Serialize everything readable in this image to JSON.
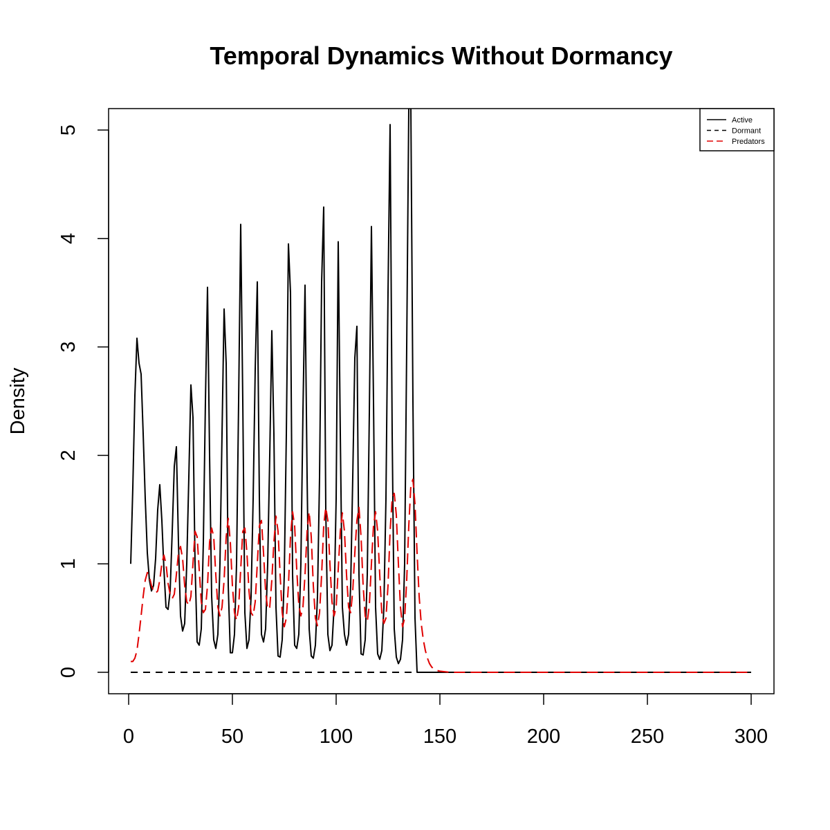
{
  "chart_data": {
    "type": "line",
    "title": "Temporal Dynamics Without Dormancy",
    "xlabel": "",
    "ylabel": "Density",
    "xlim": [
      1,
      300
    ],
    "ylim": [
      0,
      5
    ],
    "x_ticks": [
      0,
      50,
      100,
      150,
      200,
      250,
      300
    ],
    "y_ticks": [
      0,
      1,
      2,
      3,
      4,
      5
    ],
    "grid": false,
    "legend_position": "top-right",
    "series": [
      {
        "name": "Active",
        "color": "#000000",
        "style": "solid",
        "points": [
          [
            1,
            1.0
          ],
          [
            2,
            1.7
          ],
          [
            3,
            2.55
          ],
          [
            4,
            3.08
          ],
          [
            5,
            2.85
          ],
          [
            6,
            2.75
          ],
          [
            7,
            2.2
          ],
          [
            8,
            1.6
          ],
          [
            9,
            1.1
          ],
          [
            10,
            0.85
          ],
          [
            11,
            0.75
          ],
          [
            12,
            0.8
          ],
          [
            13,
            1.05
          ],
          [
            14,
            1.5
          ],
          [
            15,
            1.73
          ],
          [
            16,
            1.4
          ],
          [
            17,
            0.95
          ],
          [
            18,
            0.6
          ],
          [
            19,
            0.58
          ],
          [
            20,
            0.75
          ],
          [
            21,
            1.3
          ],
          [
            22,
            1.9
          ],
          [
            23,
            2.08
          ],
          [
            24,
            1.2
          ],
          [
            25,
            0.52
          ],
          [
            26,
            0.38
          ],
          [
            27,
            0.45
          ],
          [
            28,
            1.0
          ],
          [
            29,
            1.8
          ],
          [
            30,
            2.65
          ],
          [
            31,
            2.35
          ],
          [
            32,
            1.0
          ],
          [
            33,
            0.28
          ],
          [
            34,
            0.25
          ],
          [
            35,
            0.4
          ],
          [
            36,
            1.2
          ],
          [
            37,
            2.5
          ],
          [
            38,
            3.55
          ],
          [
            39,
            2.0
          ],
          [
            40,
            0.7
          ],
          [
            41,
            0.3
          ],
          [
            42,
            0.22
          ],
          [
            43,
            0.35
          ],
          [
            44,
            1.0
          ],
          [
            45,
            2.2
          ],
          [
            46,
            3.35
          ],
          [
            47,
            2.85
          ],
          [
            48,
            0.8
          ],
          [
            49,
            0.18
          ],
          [
            50,
            0.18
          ],
          [
            51,
            0.35
          ],
          [
            52,
            1.0
          ],
          [
            53,
            2.5
          ],
          [
            54,
            4.13
          ],
          [
            55,
            2.5
          ],
          [
            56,
            0.55
          ],
          [
            57,
            0.22
          ],
          [
            58,
            0.3
          ],
          [
            59,
            0.7
          ],
          [
            60,
            1.6
          ],
          [
            61,
            2.8
          ],
          [
            62,
            3.6
          ],
          [
            63,
            1.6
          ],
          [
            64,
            0.35
          ],
          [
            65,
            0.28
          ],
          [
            66,
            0.4
          ],
          [
            67,
            1.0
          ],
          [
            68,
            2.0
          ],
          [
            69,
            3.15
          ],
          [
            70,
            2.2
          ],
          [
            71,
            0.6
          ],
          [
            72,
            0.15
          ],
          [
            73,
            0.14
          ],
          [
            74,
            0.3
          ],
          [
            75,
            0.9
          ],
          [
            76,
            2.2
          ],
          [
            77,
            3.95
          ],
          [
            78,
            3.5
          ],
          [
            79,
            0.9
          ],
          [
            80,
            0.25
          ],
          [
            81,
            0.22
          ],
          [
            82,
            0.35
          ],
          [
            83,
            1.0
          ],
          [
            84,
            2.4
          ],
          [
            85,
            3.57
          ],
          [
            86,
            1.8
          ],
          [
            87,
            0.4
          ],
          [
            88,
            0.15
          ],
          [
            89,
            0.13
          ],
          [
            90,
            0.25
          ],
          [
            91,
            0.7
          ],
          [
            92,
            1.8
          ],
          [
            93,
            3.6
          ],
          [
            94,
            4.29
          ],
          [
            95,
            1.5
          ],
          [
            96,
            0.35
          ],
          [
            97,
            0.2
          ],
          [
            98,
            0.25
          ],
          [
            99,
            0.6
          ],
          [
            100,
            1.6
          ],
          [
            101,
            3.97
          ],
          [
            102,
            2.2
          ],
          [
            103,
            0.6
          ],
          [
            104,
            0.35
          ],
          [
            105,
            0.25
          ],
          [
            106,
            0.35
          ],
          [
            107,
            0.8
          ],
          [
            108,
            1.8
          ],
          [
            109,
            2.9
          ],
          [
            110,
            3.19
          ],
          [
            111,
            0.9
          ],
          [
            112,
            0.17
          ],
          [
            113,
            0.16
          ],
          [
            114,
            0.3
          ],
          [
            115,
            0.9
          ],
          [
            116,
            2.4
          ],
          [
            117,
            4.11
          ],
          [
            118,
            2.5
          ],
          [
            119,
            0.6
          ],
          [
            120,
            0.17
          ],
          [
            121,
            0.12
          ],
          [
            122,
            0.2
          ],
          [
            123,
            0.6
          ],
          [
            124,
            1.6
          ],
          [
            125,
            3.5
          ],
          [
            126,
            5.05
          ],
          [
            127,
            2.2
          ],
          [
            128,
            0.4
          ],
          [
            129,
            0.14
          ],
          [
            130,
            0.08
          ],
          [
            131,
            0.12
          ],
          [
            132,
            0.3
          ],
          [
            133,
            1.0
          ],
          [
            134,
            3.0
          ],
          [
            135,
            5.2
          ],
          [
            136,
            5.2
          ],
          [
            137,
            2.5
          ],
          [
            138,
            0.5
          ],
          [
            139,
            0.0
          ],
          [
            140,
            0.0
          ],
          [
            160,
            0.0
          ],
          [
            200,
            0.0
          ],
          [
            250,
            0.0
          ],
          [
            300,
            0.0
          ]
        ]
      },
      {
        "name": "Dormant",
        "color": "#000000",
        "style": "dashed",
        "points": [
          [
            1,
            0.0
          ],
          [
            300,
            0.0
          ]
        ]
      },
      {
        "name": "Predators",
        "color": "#e00000",
        "style": "dashed",
        "points": [
          [
            1,
            0.1
          ],
          [
            2,
            0.1
          ],
          [
            3,
            0.13
          ],
          [
            4,
            0.2
          ],
          [
            5,
            0.35
          ],
          [
            6,
            0.52
          ],
          [
            7,
            0.7
          ],
          [
            8,
            0.85
          ],
          [
            9,
            0.92
          ],
          [
            10,
            0.88
          ],
          [
            11,
            0.8
          ],
          [
            12,
            0.75
          ],
          [
            13,
            0.73
          ],
          [
            14,
            0.75
          ],
          [
            15,
            0.85
          ],
          [
            16,
            1.0
          ],
          [
            17,
            1.08
          ],
          [
            18,
            1.0
          ],
          [
            19,
            0.82
          ],
          [
            20,
            0.72
          ],
          [
            21,
            0.68
          ],
          [
            22,
            0.72
          ],
          [
            23,
            0.9
          ],
          [
            24,
            1.1
          ],
          [
            25,
            1.16
          ],
          [
            26,
            1.05
          ],
          [
            27,
            0.8
          ],
          [
            28,
            0.65
          ],
          [
            29,
            0.62
          ],
          [
            30,
            0.7
          ],
          [
            31,
            1.0
          ],
          [
            32,
            1.3
          ],
          [
            33,
            1.25
          ],
          [
            34,
            0.95
          ],
          [
            35,
            0.65
          ],
          [
            36,
            0.55
          ],
          [
            37,
            0.58
          ],
          [
            38,
            0.8
          ],
          [
            39,
            1.2
          ],
          [
            40,
            1.33
          ],
          [
            41,
            1.25
          ],
          [
            42,
            0.9
          ],
          [
            43,
            0.6
          ],
          [
            44,
            0.52
          ],
          [
            45,
            0.6
          ],
          [
            46,
            0.85
          ],
          [
            47,
            1.25
          ],
          [
            48,
            1.42
          ],
          [
            49,
            1.2
          ],
          [
            50,
            0.8
          ],
          [
            51,
            0.55
          ],
          [
            52,
            0.48
          ],
          [
            53,
            0.6
          ],
          [
            54,
            0.95
          ],
          [
            55,
            1.3
          ],
          [
            56,
            1.33
          ],
          [
            57,
            1.1
          ],
          [
            58,
            0.75
          ],
          [
            59,
            0.55
          ],
          [
            60,
            0.52
          ],
          [
            61,
            0.65
          ],
          [
            62,
            1.0
          ],
          [
            63,
            1.35
          ],
          [
            64,
            1.4
          ],
          [
            65,
            1.1
          ],
          [
            66,
            0.75
          ],
          [
            67,
            0.58
          ],
          [
            68,
            0.6
          ],
          [
            69,
            0.85
          ],
          [
            70,
            1.2
          ],
          [
            71,
            1.44
          ],
          [
            72,
            1.3
          ],
          [
            73,
            0.9
          ],
          [
            74,
            0.55
          ],
          [
            75,
            0.42
          ],
          [
            76,
            0.5
          ],
          [
            77,
            0.8
          ],
          [
            78,
            1.25
          ],
          [
            79,
            1.48
          ],
          [
            80,
            1.35
          ],
          [
            81,
            0.95
          ],
          [
            82,
            0.62
          ],
          [
            83,
            0.52
          ],
          [
            84,
            0.6
          ],
          [
            85,
            0.9
          ],
          [
            86,
            1.3
          ],
          [
            87,
            1.48
          ],
          [
            88,
            1.25
          ],
          [
            89,
            0.8
          ],
          [
            90,
            0.5
          ],
          [
            91,
            0.43
          ],
          [
            92,
            0.55
          ],
          [
            93,
            0.9
          ],
          [
            94,
            1.35
          ],
          [
            95,
            1.52
          ],
          [
            96,
            1.4
          ],
          [
            97,
            1.0
          ],
          [
            98,
            0.65
          ],
          [
            99,
            0.52
          ],
          [
            100,
            0.6
          ],
          [
            101,
            0.95
          ],
          [
            102,
            1.3
          ],
          [
            103,
            1.47
          ],
          [
            104,
            1.3
          ],
          [
            105,
            0.9
          ],
          [
            106,
            0.6
          ],
          [
            107,
            0.55
          ],
          [
            108,
            0.75
          ],
          [
            109,
            1.1
          ],
          [
            110,
            1.4
          ],
          [
            111,
            1.52
          ],
          [
            112,
            1.25
          ],
          [
            113,
            0.8
          ],
          [
            114,
            0.52
          ],
          [
            115,
            0.47
          ],
          [
            116,
            0.62
          ],
          [
            117,
            1.0
          ],
          [
            118,
            1.35
          ],
          [
            119,
            1.48
          ],
          [
            120,
            1.3
          ],
          [
            121,
            0.9
          ],
          [
            122,
            0.55
          ],
          [
            123,
            0.45
          ],
          [
            124,
            0.5
          ],
          [
            125,
            0.8
          ],
          [
            126,
            1.3
          ],
          [
            127,
            1.6
          ],
          [
            128,
            1.65
          ],
          [
            129,
            1.45
          ],
          [
            130,
            1.0
          ],
          [
            131,
            0.6
          ],
          [
            132,
            0.42
          ],
          [
            133,
            0.5
          ],
          [
            134,
            0.85
          ],
          [
            135,
            1.35
          ],
          [
            136,
            1.72
          ],
          [
            137,
            1.78
          ],
          [
            138,
            1.55
          ],
          [
            139,
            1.1
          ],
          [
            140,
            0.7
          ],
          [
            141,
            0.45
          ],
          [
            142,
            0.3
          ],
          [
            143,
            0.2
          ],
          [
            144,
            0.13
          ],
          [
            145,
            0.08
          ],
          [
            146,
            0.05
          ],
          [
            147,
            0.03
          ],
          [
            148,
            0.02
          ],
          [
            150,
            0.01
          ],
          [
            155,
            0.0
          ],
          [
            200,
            0.0
          ],
          [
            250,
            0.0
          ],
          [
            300,
            0.0
          ]
        ]
      }
    ]
  }
}
